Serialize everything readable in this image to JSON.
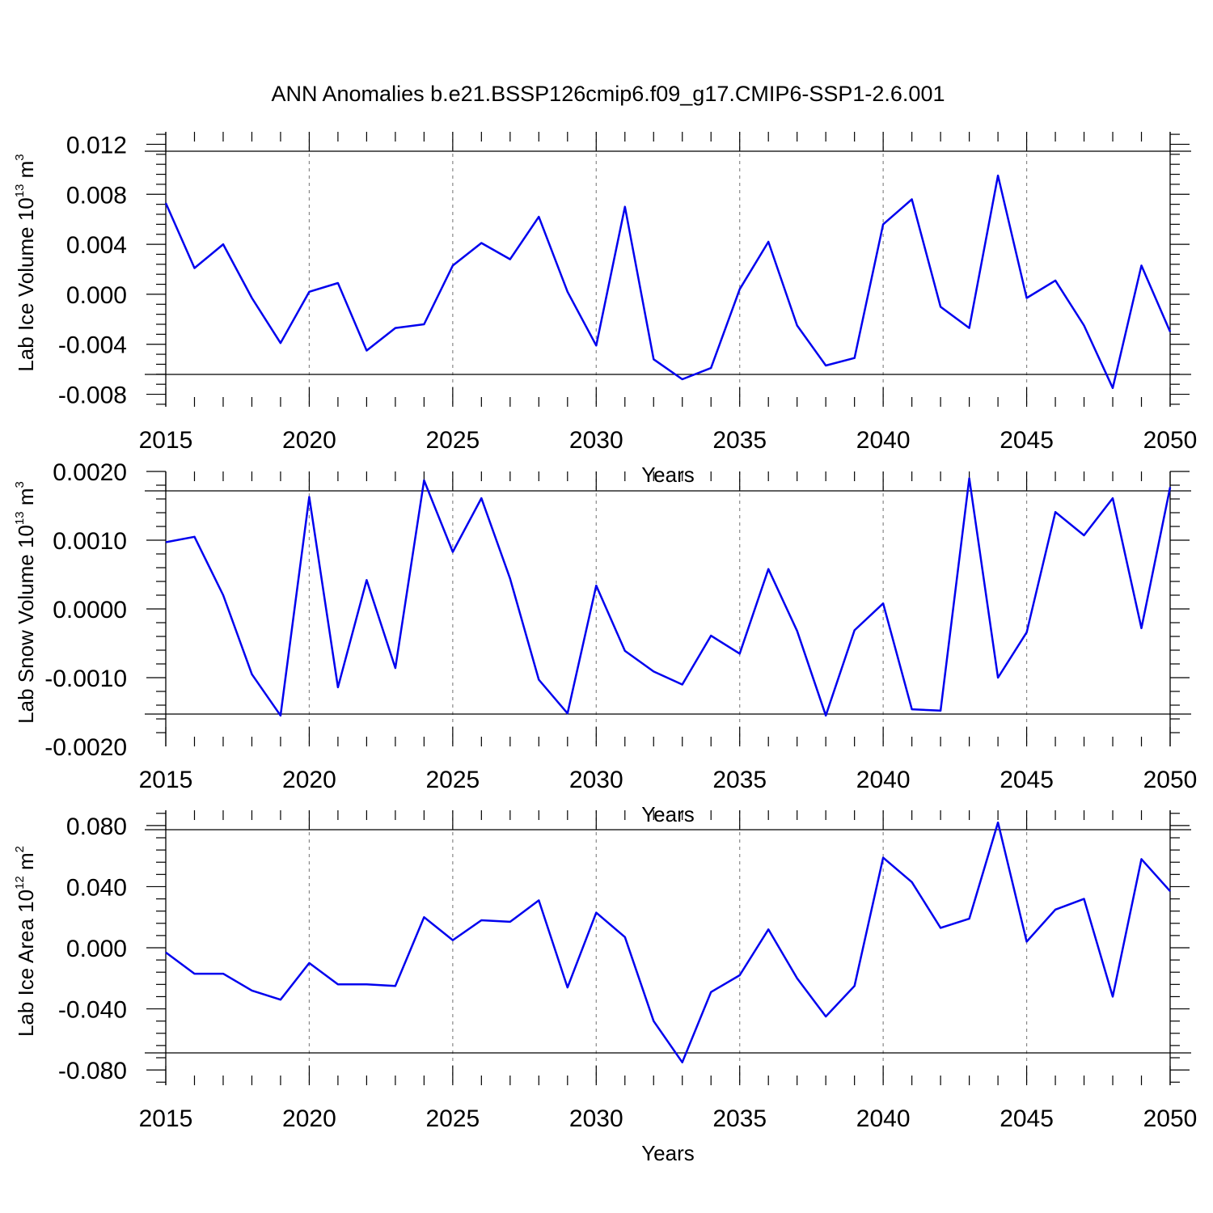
{
  "title": "ANN Anomalies b.e21.BSSP126cmip6.f09_g17.CMIP6-SSP1-2.6.001",
  "chart_data": [
    {
      "type": "line",
      "title": "",
      "xlabel": "Years",
      "ylabel_main": "Lab Ice Volume 10",
      "ylabel_exp": "13",
      "ylabel_unit": " m",
      "ylabel_unit_exp": "3",
      "xlim": [
        2015,
        2050
      ],
      "ylim": [
        -0.009,
        0.013
      ],
      "x_ticks": [
        "2015",
        "2020",
        "2025",
        "2030",
        "2035",
        "2040",
        "2045",
        "2050"
      ],
      "y_ticks": [
        "0.012",
        "0.008",
        "0.004",
        "0.000",
        "-0.004",
        "-0.008"
      ],
      "grid": "dashed vertical at major x ticks",
      "x": [
        2015,
        2016,
        2017,
        2018,
        2019,
        2020,
        2021,
        2022,
        2023,
        2024,
        2025,
        2026,
        2027,
        2028,
        2029,
        2030,
        2031,
        2032,
        2033,
        2034,
        2035,
        2036,
        2037,
        2038,
        2039,
        2040,
        2041,
        2042,
        2043,
        2044,
        2045,
        2046,
        2047,
        2048,
        2049,
        2050
      ],
      "values": [
        0.0073,
        0.0021,
        0.004,
        -0.0003,
        -0.0039,
        0.0002,
        0.0009,
        -0.0045,
        -0.0027,
        -0.0024,
        0.0023,
        0.0041,
        0.0028,
        0.0062,
        0.0002,
        -0.0041,
        0.007,
        -0.0052,
        -0.0068,
        -0.0059,
        0.0004,
        0.0042,
        -0.0025,
        -0.0057,
        -0.0051,
        0.0056,
        0.0076,
        -0.001,
        -0.0027,
        0.0095,
        -0.0003,
        0.0011,
        -0.0025,
        -0.0075,
        0.0023,
        -0.003
      ],
      "color": "#0000ee"
    },
    {
      "type": "line",
      "title": "",
      "xlabel": "Years",
      "ylabel_main": "Lab Snow Volume 10",
      "ylabel_exp": "13",
      "ylabel_unit": " m",
      "ylabel_unit_exp": "3",
      "xlim": [
        2015,
        2050
      ],
      "ylim": [
        -0.002,
        0.002
      ],
      "x_ticks": [
        "2015",
        "2020",
        "2025",
        "2030",
        "2035",
        "2040",
        "2045",
        "2050"
      ],
      "y_ticks": [
        "0.0020",
        "0.0010",
        "0.0000",
        "-0.0010",
        "-0.0020"
      ],
      "grid": "dashed vertical at major x ticks",
      "x": [
        2015,
        2016,
        2017,
        2018,
        2019,
        2020,
        2021,
        2022,
        2023,
        2024,
        2025,
        2026,
        2027,
        2028,
        2029,
        2030,
        2031,
        2032,
        2033,
        2034,
        2035,
        2036,
        2037,
        2038,
        2039,
        2040,
        2041,
        2042,
        2043,
        2044,
        2045,
        2046,
        2047,
        2048,
        2049,
        2050
      ],
      "values": [
        0.00097,
        0.00105,
        0.0002,
        -0.00095,
        -0.00155,
        0.00163,
        -0.00114,
        0.00042,
        -0.00086,
        0.00187,
        0.00083,
        0.00161,
        0.00044,
        -0.00103,
        -0.00152,
        0.00034,
        -0.00061,
        -0.00091,
        -0.0011,
        -0.00039,
        -0.00065,
        0.00058,
        -0.00032,
        -0.00155,
        -0.00031,
        8e-05,
        -0.00146,
        -0.00148,
        0.0019,
        -0.001,
        -0.00034,
        0.00141,
        0.00107,
        0.00161,
        -0.00028,
        0.00177
      ],
      "color": "#0000ee"
    },
    {
      "type": "line",
      "title": "",
      "xlabel": "Years",
      "ylabel_main": "Lab Ice Area 10",
      "ylabel_exp": "12",
      "ylabel_unit": " m",
      "ylabel_unit_exp": "2",
      "xlim": [
        2015,
        2050
      ],
      "ylim": [
        -0.09,
        0.09
      ],
      "x_ticks": [
        "2015",
        "2020",
        "2025",
        "2030",
        "2035",
        "2040",
        "2045",
        "2050"
      ],
      "y_ticks": [
        "0.080",
        "0.040",
        "0.000",
        "-0.040",
        "-0.080"
      ],
      "grid": "dashed vertical at major x ticks",
      "x": [
        2015,
        2016,
        2017,
        2018,
        2019,
        2020,
        2021,
        2022,
        2023,
        2024,
        2025,
        2026,
        2027,
        2028,
        2029,
        2030,
        2031,
        2032,
        2033,
        2034,
        2035,
        2036,
        2037,
        2038,
        2039,
        2040,
        2041,
        2042,
        2043,
        2044,
        2045,
        2046,
        2047,
        2048,
        2049,
        2050
      ],
      "values": [
        -0.003,
        -0.017,
        -0.017,
        -0.028,
        -0.034,
        -0.01,
        -0.024,
        -0.024,
        -0.025,
        0.02,
        0.005,
        0.018,
        0.017,
        0.031,
        -0.026,
        0.023,
        0.007,
        -0.048,
        -0.075,
        -0.029,
        -0.018,
        0.012,
        -0.02,
        -0.045,
        -0.025,
        0.059,
        0.043,
        0.013,
        0.019,
        0.082,
        0.004,
        0.025,
        0.032,
        -0.032,
        0.058,
        0.037
      ],
      "color": "#0000ee"
    }
  ]
}
